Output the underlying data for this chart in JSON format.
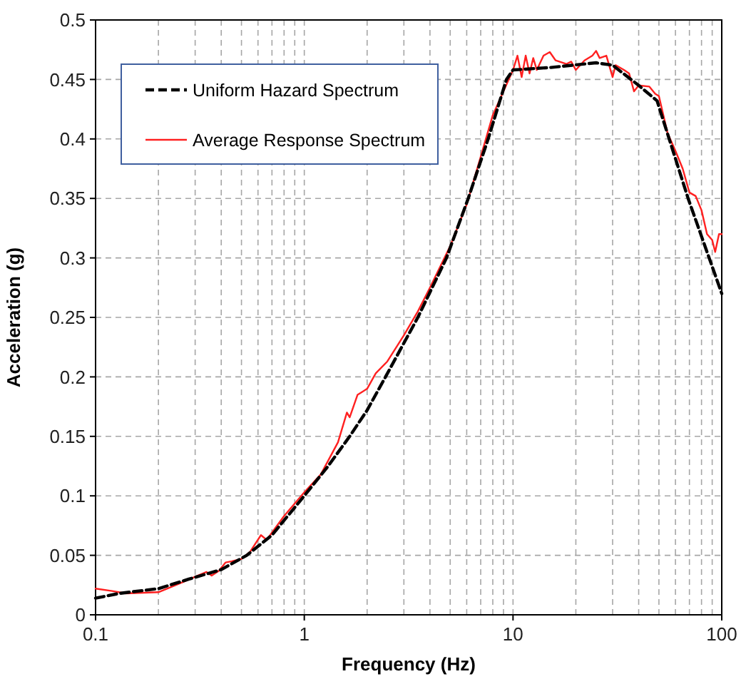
{
  "chart_data": {
    "type": "line",
    "xlabel": "Frequency (Hz)",
    "ylabel": "Acceleration (g)",
    "log": "x",
    "grid": true,
    "legend": "top left",
    "xlim": [
      0.1,
      100
    ],
    "xticks": [
      0.1,
      {
        "value": 0.2,
        "label": null
      },
      {
        "value": 0.3,
        "label": null
      },
      {
        "value": 0.4,
        "label": null
      },
      {
        "value": 0.5,
        "label": null
      },
      {
        "value": 0.6,
        "label": null
      },
      {
        "value": 0.7,
        "label": null
      },
      {
        "value": 0.8,
        "label": null
      },
      {
        "value": 0.9,
        "label": null
      },
      1,
      {
        "value": 2,
        "label": null
      },
      {
        "value": 3,
        "label": null
      },
      {
        "value": 4,
        "label": null
      },
      {
        "value": 5,
        "label": null
      },
      {
        "value": 6,
        "label": null
      },
      {
        "value": 7,
        "label": null
      },
      {
        "value": 8,
        "label": null
      },
      {
        "value": 9,
        "label": null
      },
      10,
      {
        "value": 20,
        "label": null
      },
      {
        "value": 30,
        "label": null
      },
      {
        "value": 40,
        "label": null
      },
      {
        "value": 50,
        "label": null
      },
      {
        "value": 60,
        "label": null
      },
      {
        "value": 70,
        "label": null
      },
      {
        "value": 80,
        "label": null
      },
      {
        "value": 90,
        "label": null
      },
      100
    ],
    "ylim": [
      0,
      0.5
    ],
    "yticks": [
      0,
      0.05,
      0.1,
      0.15,
      0.2,
      0.25,
      0.3,
      0.35,
      0.4,
      0.45,
      0.5
    ],
    "series": [
      {
        "name": "Average Response Spectrum",
        "color": "#ff2020",
        "line_style": "solid",
        "x": [
          0.1,
          0.12,
          0.14,
          0.2,
          0.25,
          0.3,
          0.34,
          0.36,
          0.39,
          0.42,
          0.45,
          0.5,
          0.55,
          0.62,
          0.66,
          0.8,
          1,
          1.2,
          1.45,
          1.6,
          1.65,
          1.8,
          2,
          2.2,
          2.5,
          3,
          3.5,
          4,
          5,
          6,
          7,
          8,
          9,
          10,
          10.5,
          11,
          11.5,
          12,
          12.5,
          13,
          14,
          15,
          16,
          18,
          19,
          20,
          22,
          24,
          25,
          26,
          28,
          30,
          31,
          34,
          36,
          38,
          40,
          45,
          48,
          50,
          55,
          60,
          65,
          70,
          75,
          80,
          85,
          90,
          93,
          97,
          100
        ],
        "values": [
          0.022,
          0.02,
          0.018,
          0.019,
          0.026,
          0.032,
          0.036,
          0.033,
          0.037,
          0.044,
          0.045,
          0.047,
          0.053,
          0.067,
          0.063,
          0.083,
          0.103,
          0.118,
          0.145,
          0.17,
          0.166,
          0.185,
          0.19,
          0.203,
          0.213,
          0.235,
          0.255,
          0.275,
          0.31,
          0.345,
          0.385,
          0.42,
          0.44,
          0.458,
          0.47,
          0.452,
          0.47,
          0.455,
          0.468,
          0.458,
          0.47,
          0.473,
          0.466,
          0.463,
          0.465,
          0.458,
          0.466,
          0.47,
          0.474,
          0.468,
          0.47,
          0.452,
          0.462,
          0.458,
          0.455,
          0.44,
          0.445,
          0.444,
          0.438,
          0.436,
          0.405,
          0.39,
          0.375,
          0.355,
          0.352,
          0.34,
          0.32,
          0.315,
          0.305,
          0.32,
          0.32
        ]
      },
      {
        "name": "Uniform Hazard Spectrum",
        "color": "#000000",
        "line_style": "dashed",
        "x": [
          0.1,
          0.13,
          0.2,
          0.28,
          0.4,
          0.53,
          0.7,
          1,
          1.3,
          1.65,
          2,
          2.45,
          3.5,
          4.8,
          6.1,
          7.6,
          9.3,
          10,
          15,
          25,
          30,
          40,
          49,
          56,
          69,
          87,
          100
        ],
        "values": [
          0.014,
          0.018,
          0.022,
          0.03,
          0.038,
          0.05,
          0.067,
          0.1,
          0.125,
          0.15,
          0.172,
          0.2,
          0.25,
          0.3,
          0.35,
          0.4,
          0.45,
          0.458,
          0.46,
          0.464,
          0.462,
          0.445,
          0.432,
          0.4,
          0.35,
          0.3,
          0.27
        ]
      }
    ]
  }
}
